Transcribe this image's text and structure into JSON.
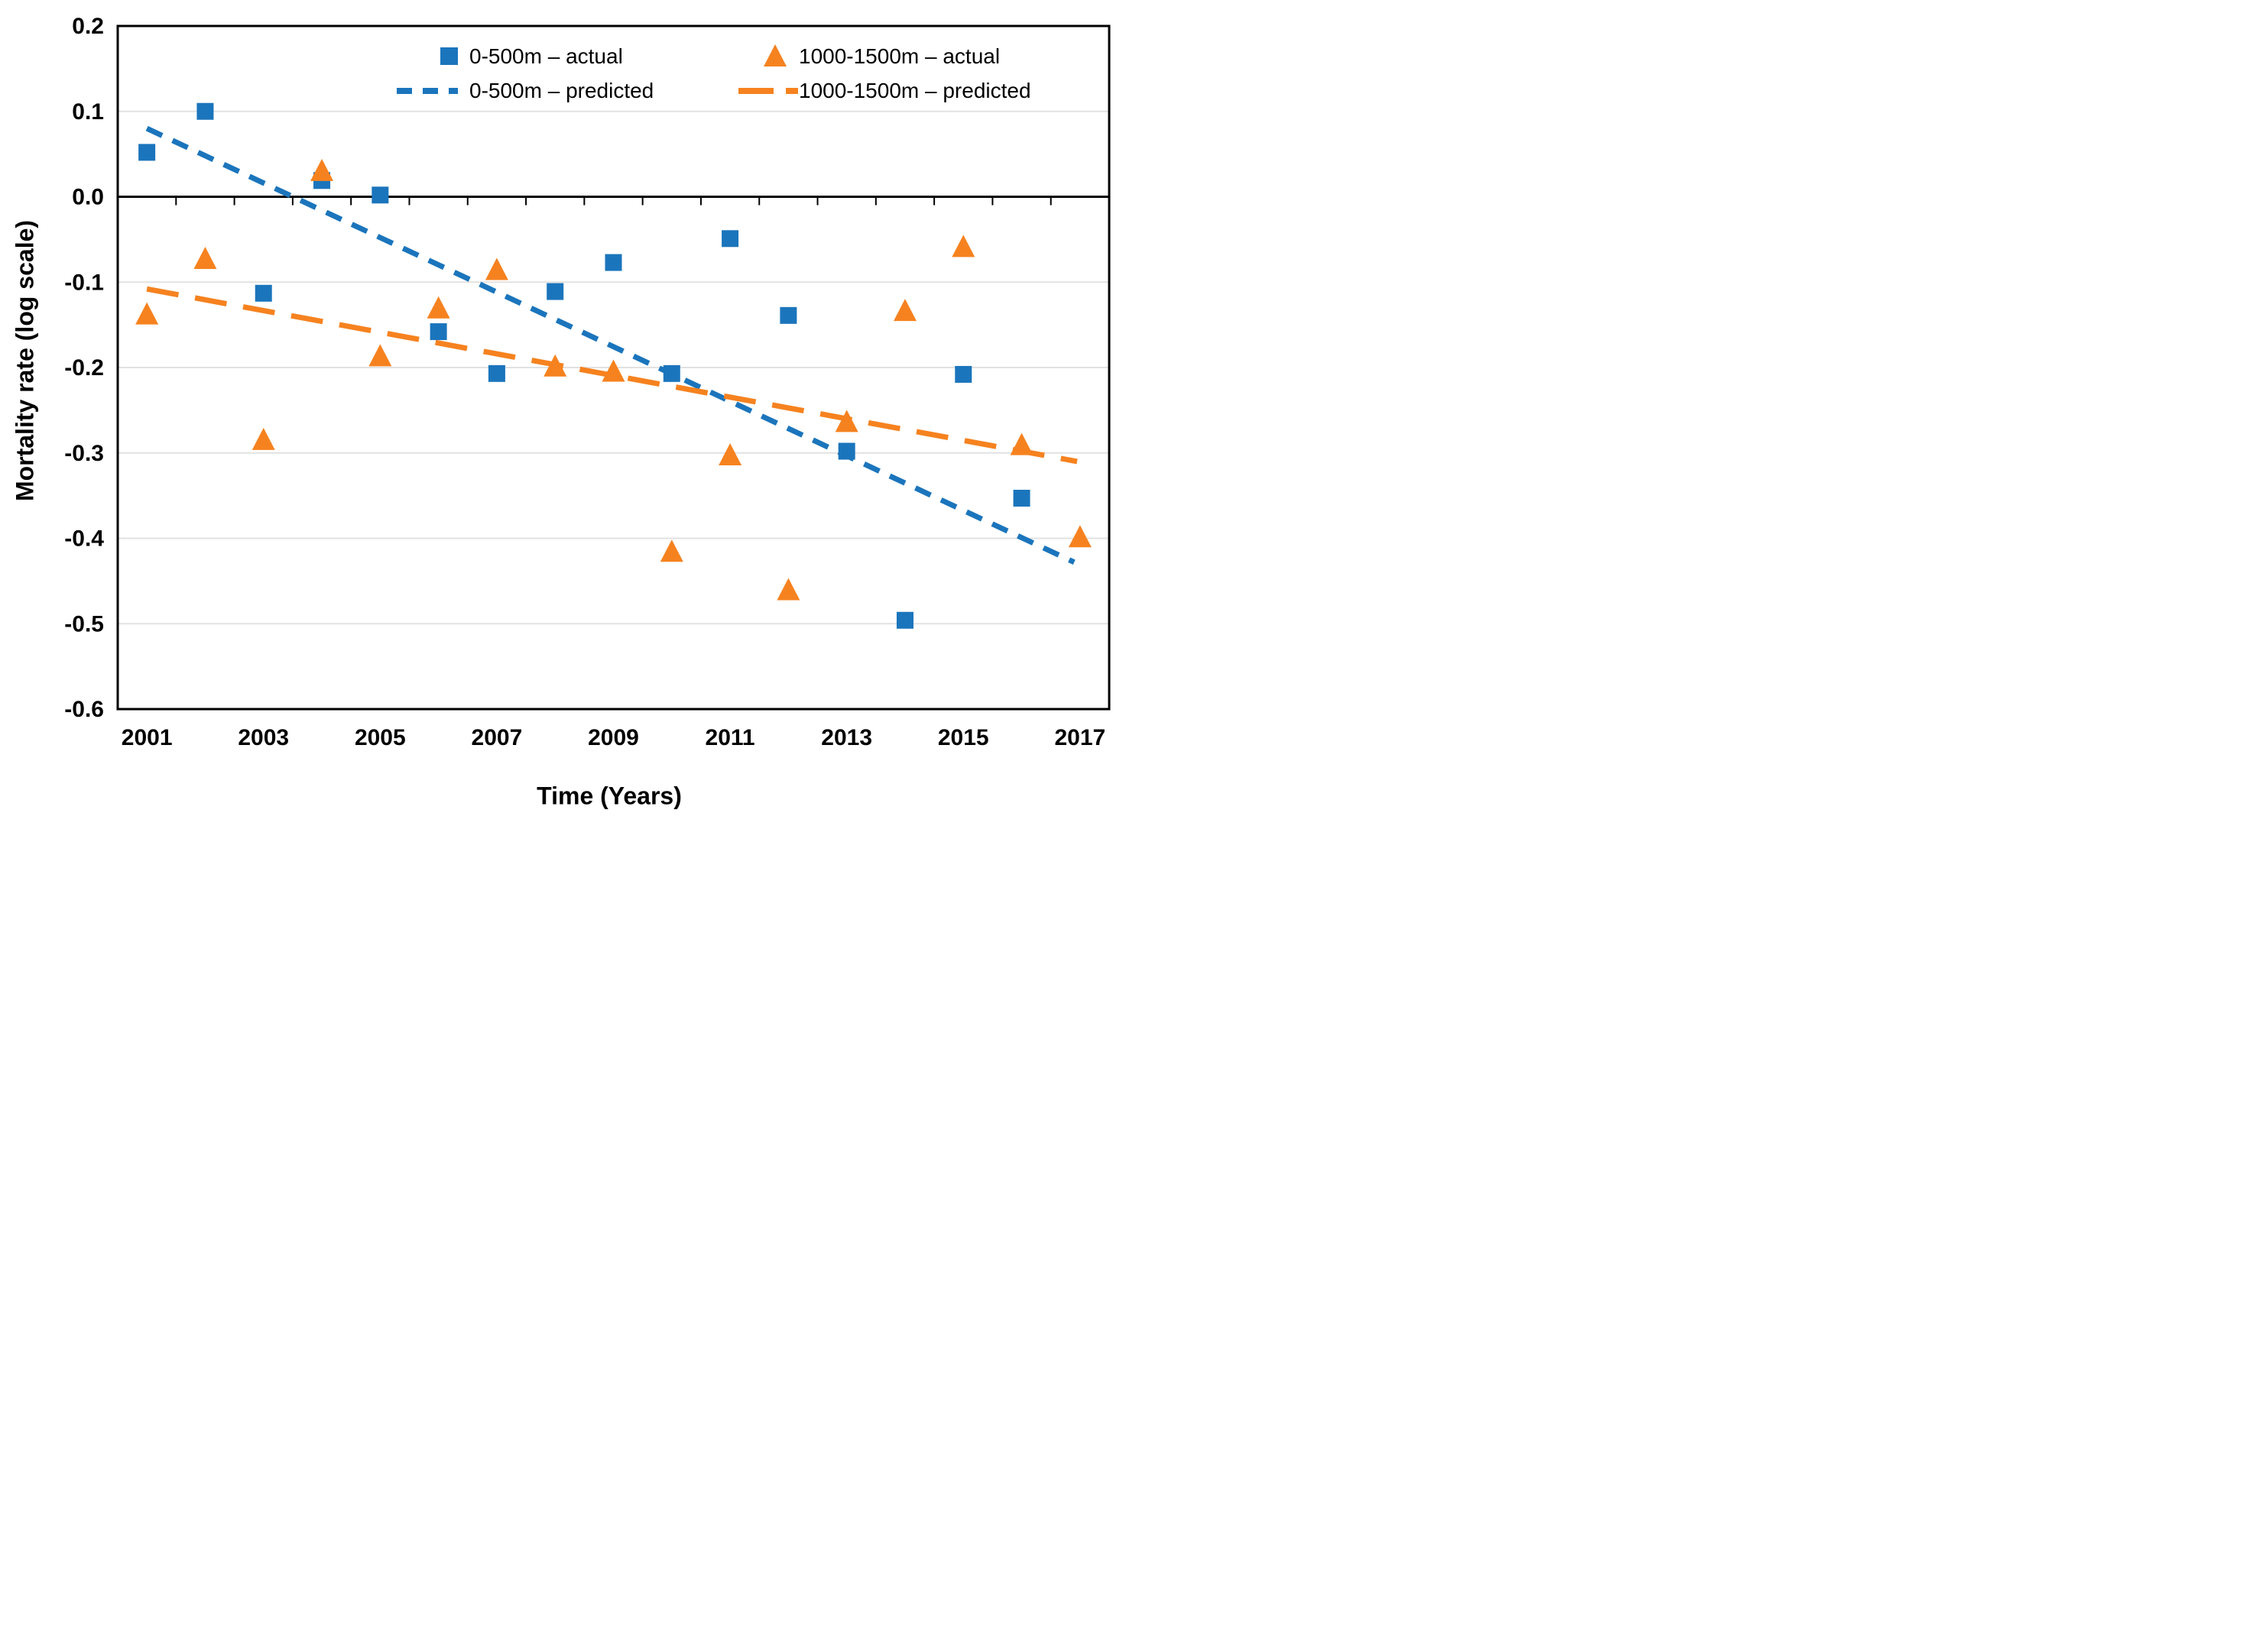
{
  "figure": {
    "y_axis_title": "Mortality rate (log scale)",
    "x_axis_title": "Time (Years)"
  },
  "chart_data": {
    "type": "scatter",
    "title": "",
    "xlabel": "Time (Years)",
    "ylabel": "Mortality rate (log scale)",
    "ylim": [
      -0.6,
      0.2
    ],
    "grid": "horizontal",
    "legend_position": "top-center",
    "colors": {
      "blue": "#1B75BC",
      "orange": "#F6821F",
      "gridline": "#E2E2E2",
      "axis": "#000000"
    },
    "x": [
      2001,
      2002,
      2003,
      2004,
      2005,
      2006,
      2007,
      2008,
      2009,
      2010,
      2011,
      2012,
      2013,
      2014,
      2015,
      2016,
      2017
    ],
    "x_tick_labels": [
      "2001",
      "2003",
      "2005",
      "2007",
      "2009",
      "2011",
      "2013",
      "2015",
      "2017"
    ],
    "x_tick_years": [
      2001,
      2003,
      2005,
      2007,
      2009,
      2011,
      2013,
      2015,
      2017
    ],
    "y_ticks": [
      {
        "label": "0.2",
        "value": 0.2
      },
      {
        "label": "0.1",
        "value": 0.1
      },
      {
        "label": "0.0",
        "value": 0.0
      },
      {
        "label": "-0.1",
        "value": -0.1
      },
      {
        "label": "-0.2",
        "value": -0.2
      },
      {
        "label": "-0.3",
        "value": -0.3
      },
      {
        "label": "-0.4",
        "value": -0.4
      },
      {
        "label": "-0.5",
        "value": -0.5
      },
      {
        "label": "-0.6",
        "value": -0.6
      }
    ],
    "series": [
      {
        "name": "0-500m – actual",
        "kind": "scatter",
        "marker": "square",
        "color_key": "blue",
        "values": [
          0.052,
          0.1,
          -0.113,
          0.019,
          0.002,
          -0.158,
          -0.207,
          -0.111,
          -0.077,
          -0.207,
          -0.049,
          -0.139,
          -0.298,
          -0.496,
          -0.208,
          -0.353,
          null
        ]
      },
      {
        "name": "0-500m – predicted",
        "kind": "trendline",
        "dash": "short",
        "color_key": "blue",
        "x": [
          2001,
          2016.9
        ],
        "y": [
          0.08,
          -0.428
        ]
      },
      {
        "name": "1000-1500m – actual",
        "kind": "scatter",
        "marker": "triangle",
        "color_key": "orange",
        "values": [
          -0.137,
          -0.072,
          -0.284,
          0.031,
          -0.186,
          -0.13,
          -0.085,
          -0.198,
          -0.204,
          -0.415,
          -0.302,
          -0.46,
          -0.263,
          -0.133,
          -0.058,
          -0.29,
          -0.398
        ]
      },
      {
        "name": "1000-1500m – predicted",
        "kind": "trendline",
        "dash": "long",
        "color_key": "orange",
        "x": [
          2001,
          16.95
        ],
        "y": [
          -0.108,
          -0.31
        ]
      }
    ]
  }
}
